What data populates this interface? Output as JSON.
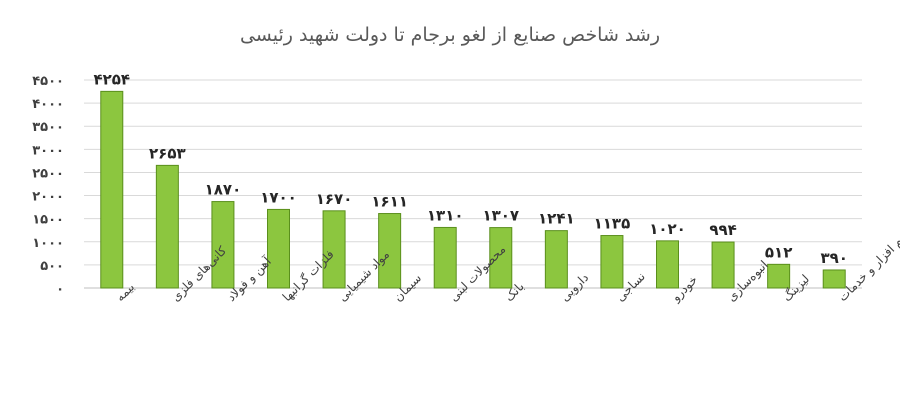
{
  "chart_data": {
    "type": "bar",
    "title": "رشد شاخص صنایع از لغو برجام تا دولت شهید رئیسی",
    "categories": [
      "بیمه",
      "کانی‌های فلزی",
      "آهن و فولاد",
      "فلزات گرانبها",
      "مواد شیمیایی",
      "سیمان",
      "محصولات لبنی",
      "بانک",
      "دارویی",
      "نساجی",
      "خودرو",
      "انبوه‌سازی",
      "لیزینگ",
      "نرم افزار و خدمات"
    ],
    "values": [
      4254,
      2653,
      1870,
      1700,
      1670,
      1611,
      1310,
      1307,
      1241,
      1135,
      1020,
      994,
      512,
      390
    ],
    "value_labels": [
      "۴۲۵۴",
      "۲۶۵۳",
      "۱۸۷۰",
      "۱۷۰۰",
      "۱۶۷۰",
      "۱۶۱۱",
      "۱۳۱۰",
      "۱۳۰۷",
      "۱۲۴۱",
      "۱۱۳۵",
      "۱۰۲۰",
      "۹۹۴",
      "۵۱۲",
      "۳۹۰"
    ],
    "yticks": [
      0,
      500,
      1000,
      1500,
      2000,
      2500,
      3000,
      3500,
      4000,
      4500
    ],
    "ytick_labels": [
      "۰",
      "۵۰۰",
      "۱۰۰۰",
      "۱۵۰۰",
      "۲۰۰۰",
      "۲۵۰۰",
      "۳۰۰۰",
      "۳۵۰۰",
      "۴۰۰۰",
      "۴۵۰۰"
    ],
    "ylim": [
      0,
      4500
    ],
    "xlabel": "",
    "ylabel": "",
    "grid": true,
    "bar_color": "#8cc63f",
    "bar_edge_color": "#5a8f1c"
  }
}
